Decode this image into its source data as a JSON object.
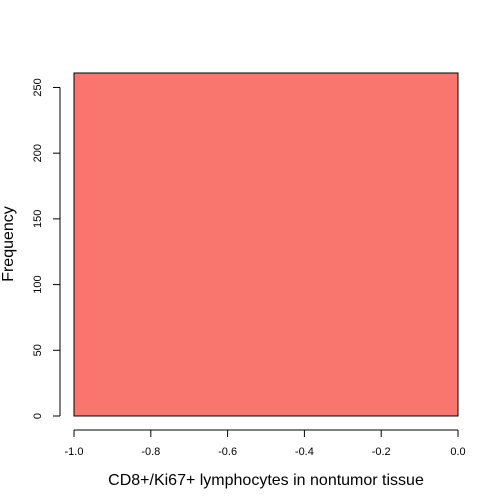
{
  "chart_data": {
    "type": "bar",
    "title": "",
    "xlabel": "CD8+/Ki67+ lymphocytes in nontumor tissue",
    "ylabel": "Frequency",
    "bins": [
      {
        "x0": -1.0,
        "x1": 0.0,
        "count": 261
      }
    ],
    "xlim": [
      -1.0,
      0.0
    ],
    "ylim": [
      0,
      261
    ],
    "x_ticks": [
      -1.0,
      -0.8,
      -0.6,
      -0.4,
      -0.2,
      0.0
    ],
    "x_tick_labels": [
      "-1.0",
      "-0.8",
      "-0.6",
      "-0.4",
      "-0.2",
      "0.0"
    ],
    "y_ticks": [
      0,
      50,
      100,
      150,
      200,
      250
    ],
    "y_tick_labels": [
      "0",
      "50",
      "100",
      "150",
      "200",
      "250"
    ],
    "bar_color": "#f8766d",
    "border_color": "#000000",
    "grid": false,
    "legend": "none"
  }
}
